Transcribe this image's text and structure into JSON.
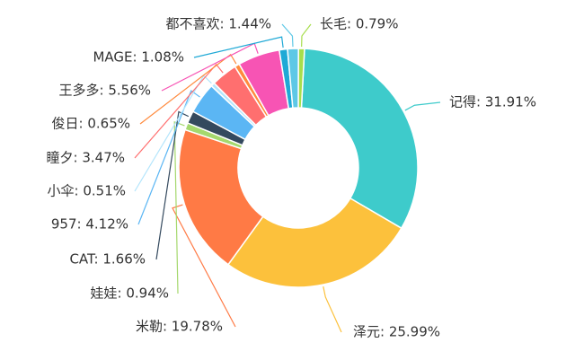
{
  "chart_data": {
    "type": "pie",
    "subtype": "donut",
    "title": "",
    "slices": [
      {
        "name": "记得",
        "value": 31.91,
        "display": "记得: 31.91%",
        "color": "#3ecbcb"
      },
      {
        "name": "泽元",
        "value": 25.99,
        "display": "泽元: 25.99%",
        "color": "#fcc13c"
      },
      {
        "name": "米勒",
        "value": 19.78,
        "display": "米勒: 19.78%",
        "color": "#ff7a45"
      },
      {
        "name": "娃娃",
        "value": 0.94,
        "display": "娃娃: 0.94%",
        "color": "#a5d86d"
      },
      {
        "name": "CAT",
        "value": 1.66,
        "display": "CAT: 1.66%",
        "color": "#34495e"
      },
      {
        "name": "957",
        "value": 4.12,
        "display": "957: 4.12%",
        "color": "#5bb6f4"
      },
      {
        "name": "小伞",
        "value": 0.51,
        "display": "小伞: 0.51%",
        "color": "#b3e5fc"
      },
      {
        "name": "瞳夕",
        "value": 3.47,
        "display": "瞳夕: 3.47%",
        "color": "#ff6f6f"
      },
      {
        "name": "俊日",
        "value": 0.65,
        "display": "俊日: 0.65%",
        "color": "#ff8a3d"
      },
      {
        "name": "王多多",
        "value": 5.56,
        "display": "王多多: 5.56%",
        "color": "#f754b4"
      },
      {
        "name": "MAGE",
        "value": 1.08,
        "display": "MAGE: 1.08%",
        "color": "#1fa9d6"
      },
      {
        "name": "都不喜欢",
        "value": 1.44,
        "display": "都不喜欢: 1.44%",
        "color": "#5ec8e6"
      },
      {
        "name": "长毛",
        "value": 0.79,
        "display": "长毛: 0.79%",
        "color": "#a7de4c"
      }
    ]
  }
}
